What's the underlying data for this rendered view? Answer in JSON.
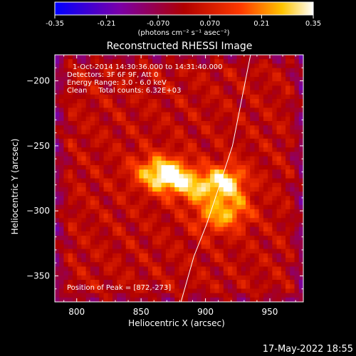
{
  "chart_data": {
    "type": "heatmap",
    "title": "Reconstructed RHESSI Image",
    "xlabel": "Heliocentric X (arcsec)",
    "ylabel": "Heliocentric Y (arcsec)",
    "xlim": [
      783,
      976
    ],
    "ylim": [
      -370,
      -180
    ],
    "xticks": [
      800,
      850,
      900,
      950
    ],
    "yticks": [
      -200,
      -250,
      -300,
      -350
    ],
    "colorbar": {
      "label": "(photons cm⁻² s⁻¹ asec⁻²)",
      "range": [
        -0.35,
        0.35
      ],
      "ticks": [
        "-0.35",
        "-0.21",
        "-0.070",
        "0.070",
        "0.21",
        "0.35"
      ],
      "colormap": "blue-purple-red-orange-yellow-white"
    },
    "annotations": [
      "1-Oct-2014 14:30:36.000 to 14:31:40.000",
      "Detectors: 3F 6F 9F, Att 0",
      "Energy Range: 3.0 - 6.0 keV",
      "Clean     Total counts: 6.32E+03",
      "Position of Peak = [872,-273]"
    ],
    "peaks": [
      {
        "x": 872,
        "y": -273,
        "intensity": 0.35
      },
      {
        "x": 916,
        "y": -278,
        "intensity": 0.3
      },
      {
        "x": 893,
        "y": -282,
        "intensity": 0.22
      },
      {
        "x": 922,
        "y": -300,
        "intensity": 0.17
      },
      {
        "x": 905,
        "y": -305,
        "intensity": 0.15
      },
      {
        "x": 855,
        "y": -270,
        "intensity": 0.15
      }
    ],
    "limb_curve": {
      "points": [
        [
          935,
          -180
        ],
        [
          928,
          -215
        ],
        [
          921,
          -250
        ],
        [
          911,
          -280
        ],
        [
          901,
          -310
        ],
        [
          891,
          -335
        ],
        [
          881,
          -370
        ]
      ]
    }
  },
  "footer": {
    "timestamp": "17-May-2022 18:55"
  }
}
